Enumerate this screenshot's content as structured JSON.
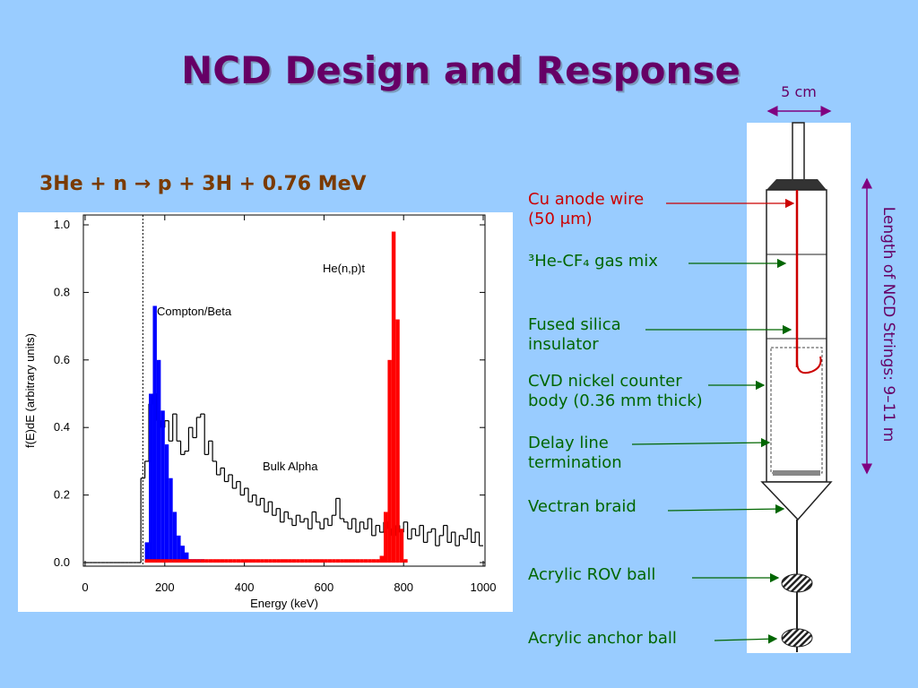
{
  "title": "NCD Design and Response",
  "equation": "3He + n → p + 3H + 0.76 MeV",
  "chart_data": {
    "type": "histogram",
    "xlabel": "Energy (keV)",
    "ylabel": "f(E)dE (arbitrary units)",
    "xlim": [
      0,
      1000
    ],
    "ylim": [
      0,
      1.0
    ],
    "xticks": [
      0,
      200,
      400,
      600,
      800,
      1000
    ],
    "yticks": [
      {
        "value": 0,
        "label": "0.0"
      },
      {
        "value": 0.2,
        "label": "0.2"
      },
      {
        "value": 0.4,
        "label": "0.4"
      },
      {
        "value": 0.6,
        "label": "0.6"
      },
      {
        "value": 0.8,
        "label": "0.8"
      },
      {
        "value": 1.0,
        "label": "1.0"
      }
    ],
    "threshold": 145,
    "bins": [
      0,
      10,
      20,
      30,
      40,
      50,
      60,
      70,
      80,
      90,
      100,
      110,
      120,
      130,
      140,
      150,
      160,
      170,
      180,
      190,
      200,
      210,
      220,
      230,
      240,
      250,
      260,
      270,
      280,
      290,
      300,
      310,
      320,
      330,
      340,
      350,
      360,
      370,
      380,
      390,
      400,
      410,
      420,
      430,
      440,
      450,
      460,
      470,
      480,
      490,
      500,
      510,
      520,
      530,
      540,
      550,
      560,
      570,
      580,
      590,
      600,
      610,
      620,
      630,
      640,
      650,
      660,
      670,
      680,
      690,
      700,
      710,
      720,
      730,
      740,
      750,
      760,
      770,
      780,
      790,
      800,
      810,
      820,
      830,
      840,
      850,
      860,
      870,
      880,
      890,
      900,
      910,
      920,
      930,
      940,
      950,
      960,
      970,
      980,
      990,
      1000
    ],
    "series": [
      {
        "name": "Bulk Alpha",
        "color": "#000000",
        "style": "step",
        "values": [
          0,
          0,
          0,
          0,
          0,
          0,
          0,
          0,
          0,
          0,
          0,
          0,
          0,
          0,
          0.25,
          0.3,
          0.47,
          0.5,
          0.42,
          0.4,
          0.42,
          0.36,
          0.44,
          0.36,
          0.32,
          0.33,
          0.4,
          0.37,
          0.43,
          0.44,
          0.32,
          0.36,
          0.3,
          0.26,
          0.28,
          0.24,
          0.26,
          0.22,
          0.24,
          0.2,
          0.22,
          0.18,
          0.2,
          0.17,
          0.19,
          0.15,
          0.18,
          0.14,
          0.16,
          0.12,
          0.15,
          0.13,
          0.11,
          0.14,
          0.12,
          0.13,
          0.1,
          0.15,
          0.12,
          0.1,
          0.13,
          0.11,
          0.14,
          0.19,
          0.13,
          0.12,
          0.1,
          0.13,
          0.09,
          0.12,
          0.1,
          0.13,
          0.08,
          0.11,
          0.09,
          0.12,
          0.1,
          0.08,
          0.11,
          0.09,
          0.12,
          0.07,
          0.1,
          0.08,
          0.11,
          0.06,
          0.09,
          0.1,
          0.05,
          0.08,
          0.11,
          0.06,
          0.09,
          0.05,
          0.08,
          0.07,
          0.1,
          0.06,
          0.09,
          0.05
        ]
      },
      {
        "name": "Compton/Beta",
        "color": "#0000ff",
        "style": "fill",
        "values": [
          0,
          0,
          0,
          0,
          0,
          0,
          0,
          0,
          0,
          0,
          0,
          0,
          0,
          0,
          0,
          0.06,
          0.5,
          0.76,
          0.6,
          0.45,
          0.35,
          0.25,
          0.15,
          0.08,
          0.05,
          0.03,
          0.01,
          0.01,
          0.01,
          0.01,
          0,
          0,
          0,
          0,
          0,
          0,
          0,
          0,
          0,
          0,
          0,
          0,
          0,
          0,
          0,
          0,
          0,
          0,
          0,
          0,
          0,
          0,
          0,
          0,
          0,
          0,
          0,
          0,
          0,
          0,
          0,
          0,
          0,
          0,
          0,
          0,
          0,
          0,
          0,
          0,
          0,
          0,
          0,
          0,
          0,
          0,
          0,
          0,
          0,
          0,
          0,
          0,
          0,
          0,
          0,
          0,
          0,
          0,
          0,
          0,
          0,
          0,
          0,
          0,
          0,
          0,
          0,
          0,
          0,
          0
        ]
      },
      {
        "name": "He(n,p)t",
        "color": "#ff0000",
        "style": "fill",
        "values": [
          0,
          0,
          0,
          0,
          0,
          0,
          0,
          0,
          0,
          0,
          0,
          0,
          0,
          0,
          0,
          0.01,
          0.01,
          0.01,
          0.01,
          0.01,
          0.01,
          0.01,
          0.01,
          0.01,
          0.01,
          0.01,
          0.01,
          0.01,
          0.01,
          0.01,
          0.01,
          0.01,
          0.01,
          0.01,
          0.01,
          0.01,
          0.01,
          0.01,
          0.01,
          0.01,
          0.01,
          0.01,
          0.01,
          0.01,
          0.01,
          0.01,
          0.01,
          0.01,
          0.01,
          0.01,
          0.01,
          0.01,
          0.01,
          0.01,
          0.01,
          0.01,
          0.01,
          0.01,
          0.01,
          0.01,
          0.01,
          0.01,
          0.01,
          0.01,
          0.01,
          0.01,
          0.01,
          0.01,
          0.01,
          0.01,
          0.01,
          0.01,
          0.01,
          0.01,
          0.02,
          0.15,
          0.6,
          0.98,
          0.72,
          0.1,
          0.01,
          0,
          0,
          0,
          0,
          0,
          0,
          0,
          0,
          0,
          0,
          0,
          0,
          0,
          0,
          0,
          0,
          0,
          0,
          0
        ]
      }
    ]
  },
  "diagram": {
    "width_label": "5 cm",
    "length_label": "Length of NCD Strings: 9–11 m",
    "labels": [
      {
        "lines": [
          "Cu anode wire",
          "(50 μm)"
        ],
        "color": "#cc0000"
      },
      {
        "lines": [
          "³He-CF₄ gas mix"
        ],
        "color": "#006600"
      },
      {
        "lines": [
          "Fused silica",
          "insulator"
        ],
        "color": "#006600"
      },
      {
        "lines": [
          "CVD nickel counter",
          "body (0.36 mm thick)"
        ],
        "color": "#006600"
      },
      {
        "lines": [
          "Delay line",
          "termination"
        ],
        "color": "#006600"
      },
      {
        "lines": [
          "Vectran braid"
        ],
        "color": "#006600"
      },
      {
        "lines": [
          "Acrylic ROV ball"
        ],
        "color": "#006600"
      },
      {
        "lines": [
          "Acrylic anchor ball"
        ],
        "color": "#006600"
      }
    ]
  }
}
